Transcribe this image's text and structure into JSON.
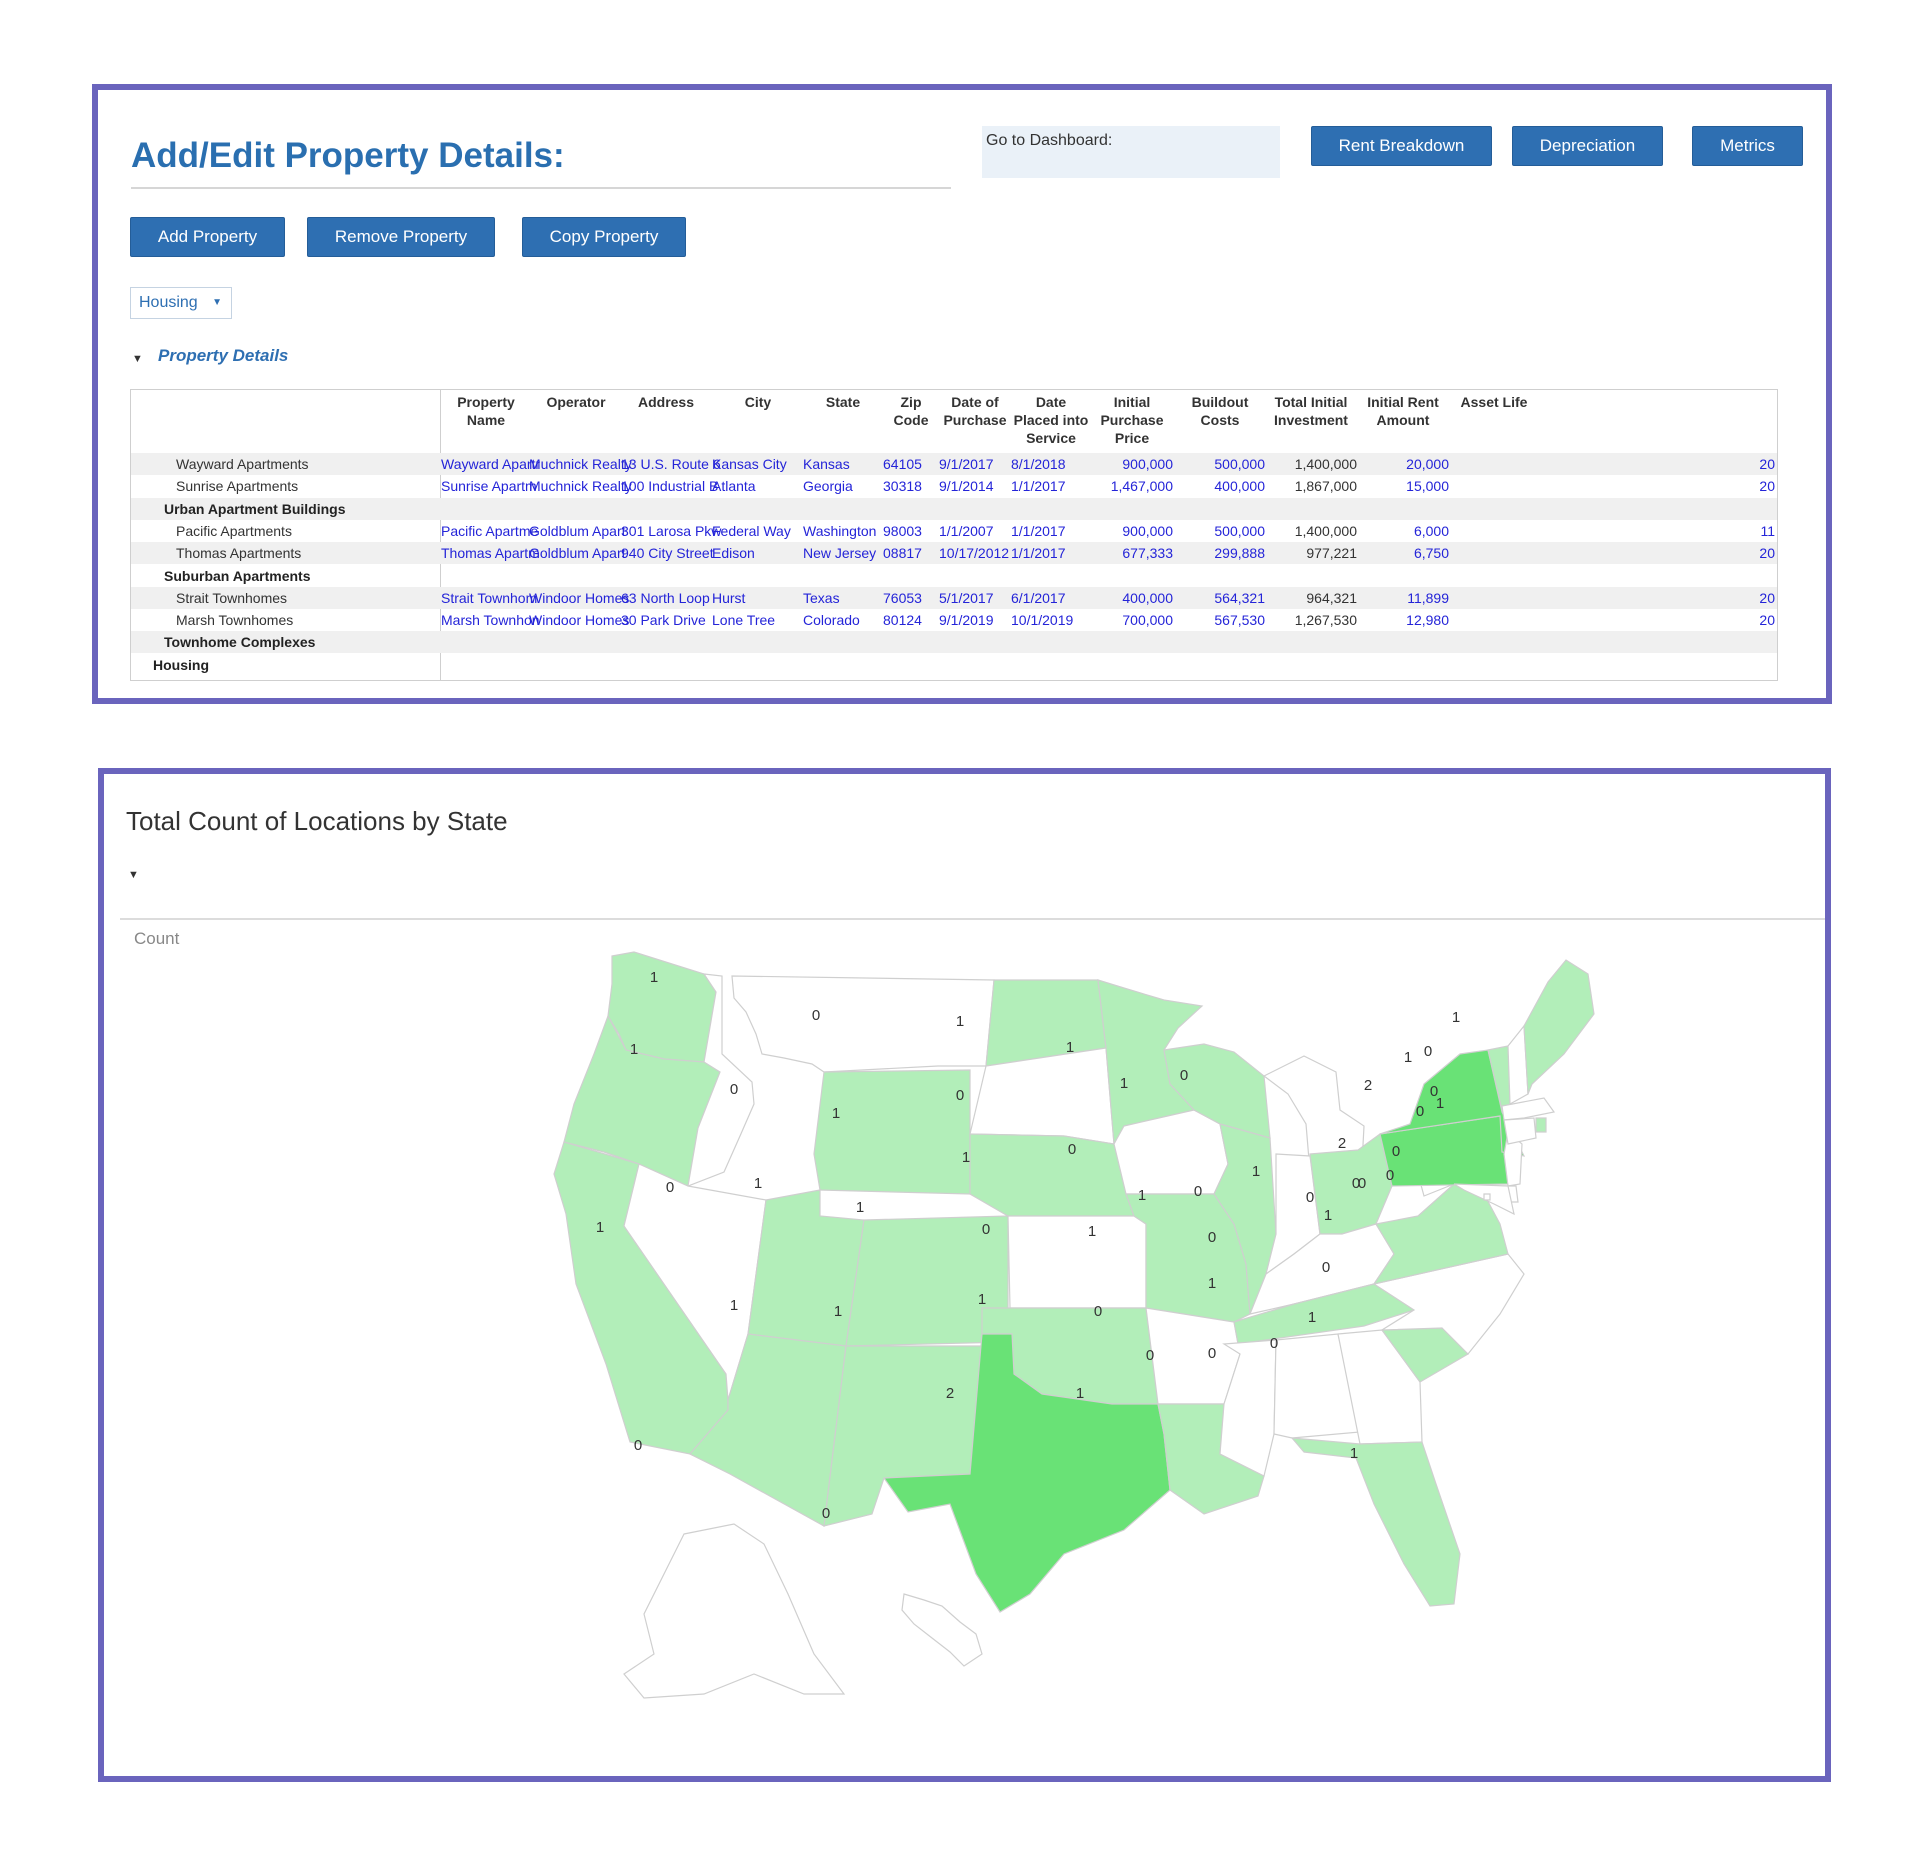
{
  "header": {
    "title": "Add/Edit Property Details:",
    "dashboard_label": "Go to Dashboard:",
    "nav_buttons": [
      "Rent Breakdown",
      "Depreciation",
      "Metrics"
    ]
  },
  "actions": [
    "Add Property",
    "Remove Property",
    "Copy Property"
  ],
  "filter": {
    "selected": "Housing"
  },
  "section": {
    "title": "Property Details"
  },
  "table": {
    "columns": [
      "Property\nName",
      "Operator",
      "Address",
      "City",
      "State",
      "Zip\nCode",
      "Date of\nPurchase",
      "Date\nPlaced into\nService",
      "Initial\nPurchase\nPrice",
      "Buildout\nCosts",
      "Total Initial\nInvestment",
      "Initial Rent\nAmount",
      "Asset Life"
    ],
    "rows": [
      {
        "label": "Wayward Apartments",
        "type": "item",
        "cells": [
          "Wayward Apartr",
          "Muchnick Realty",
          "13 U.S. Route 6",
          "Kansas City",
          "Kansas",
          "64105",
          "9/1/2017",
          "8/1/2018",
          "900,000",
          "500,000",
          "1,400,000",
          "20,000",
          "20"
        ]
      },
      {
        "label": "Sunrise Apartments",
        "type": "item",
        "cells": [
          "Sunrise Apartm",
          "Muchnick Realty",
          "100 Industrial B",
          "Atlanta",
          "Georgia",
          "30318",
          "9/1/2014",
          "1/1/2017",
          "1,467,000",
          "400,000",
          "1,867,000",
          "15,000",
          "20"
        ]
      },
      {
        "label": "Urban Apartment Buildings",
        "type": "group",
        "cells": []
      },
      {
        "label": "Pacific Apartments",
        "type": "item",
        "cells": [
          "Pacific Apartme",
          "Goldblum Apart",
          "301 Larosa Pkw",
          "Federal Way",
          "Washington",
          "98003",
          "1/1/2007",
          "1/1/2017",
          "900,000",
          "500,000",
          "1,400,000",
          "6,000",
          "11"
        ]
      },
      {
        "label": "Thomas Apartments",
        "type": "item",
        "cells": [
          "Thomas Apartm",
          "Goldblum Apart",
          "940 City Street",
          "Edison",
          "New Jersey",
          "08817",
          "10/17/2012",
          "1/1/2017",
          "677,333",
          "299,888",
          "977,221",
          "6,750",
          "20"
        ]
      },
      {
        "label": "Suburban Apartments",
        "type": "group",
        "cells": []
      },
      {
        "label": "Strait Townhomes",
        "type": "item",
        "cells": [
          "Strait Townhom",
          "Windoor Homes",
          "63 North Loop",
          "Hurst",
          "Texas",
          "76053",
          "5/1/2017",
          "6/1/2017",
          "400,000",
          "564,321",
          "964,321",
          "11,899",
          "20"
        ]
      },
      {
        "label": "Marsh Townhomes",
        "type": "item",
        "cells": [
          "Marsh Townhon",
          "Windoor Homes",
          "30 Park Drive",
          "Lone Tree",
          "Colorado",
          "80124",
          "9/1/2019",
          "10/1/2019",
          "700,000",
          "567,530",
          "1,267,530",
          "12,980",
          "20"
        ]
      },
      {
        "label": "Townhome Complexes",
        "type": "group",
        "cells": []
      },
      {
        "label": "Housing",
        "type": "total",
        "cells": []
      }
    ]
  },
  "map": {
    "title": "Total Count of Locations by State",
    "legend_label": "Count",
    "colors": {
      "zero": "#ffffff",
      "one": "#b2eeb9",
      "two": "#69e276",
      "border": "#cfcfcf"
    },
    "states": {
      "WA": 1,
      "OR": 1,
      "CA": 1,
      "ID": 0,
      "NV": 0,
      "MT": 0,
      "WY": 1,
      "UT": 1,
      "AZ": 1,
      "CO": 1,
      "NM": 1,
      "ND": 1,
      "SD": 0,
      "NE": 1,
      "KS": 0,
      "OK": 1,
      "TX": 2,
      "MN": 1,
      "IA": 0,
      "MO": 1,
      "AR": 0,
      "LA": 1,
      "WI": 1,
      "IL": 1,
      "MI": 0,
      "IN": 0,
      "OH": 1,
      "KY": 0,
      "TN": 1,
      "MS": 0,
      "AL": 0,
      "GA": 0,
      "FL": 1,
      "SC": 1,
      "NC": 0,
      "VA": 1,
      "WV": 0,
      "PA": 2,
      "NY": 2,
      "VT": 1,
      "NH": 0,
      "ME": 1,
      "MA": 0,
      "RI": 1,
      "CT": 0,
      "NJ": 0,
      "DE": 0,
      "MD": 0,
      "DC": 0,
      "AK": 0,
      "HI": 0
    }
  }
}
